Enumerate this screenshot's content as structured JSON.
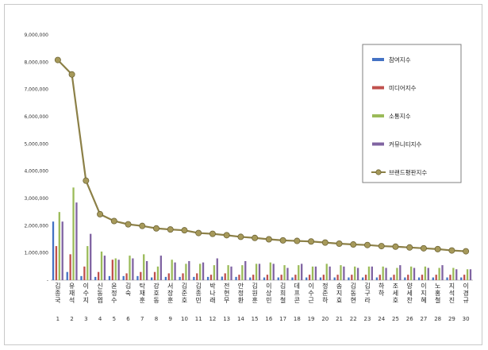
{
  "chart_data": {
    "type": "bar",
    "categories": [
      "김종국",
      "유재석",
      "이수지",
      "신동엽",
      "윤정수",
      "김숙",
      "탁재훈",
      "강호동",
      "서장훈",
      "김준호",
      "김종민",
      "박나래",
      "전현무",
      "안정환",
      "김원훈",
      "이상민",
      "김희철",
      "데프콘",
      "이수근",
      "정준하",
      "송지효",
      "김동현",
      "김구라",
      "하하",
      "조세호",
      "양세찬",
      "이지혜",
      "노홍철",
      "지석진",
      "이경규"
    ],
    "ranks": [
      "1",
      "2",
      "3",
      "4",
      "5",
      "6",
      "7",
      "8",
      "9",
      "10",
      "11",
      "12",
      "13",
      "14",
      "15",
      "16",
      "17",
      "18",
      "19",
      "20",
      "21",
      "22",
      "23",
      "24",
      "25",
      "26",
      "27",
      "28",
      "29",
      "30"
    ],
    "ylim": [
      0,
      9000000
    ],
    "yticks": [
      {
        "value": 0,
        "label": "-"
      },
      {
        "value": 1000000,
        "label": "1,000,000"
      },
      {
        "value": 2000000,
        "label": "2,000,000"
      },
      {
        "value": 3000000,
        "label": "3,000,000"
      },
      {
        "value": 4000000,
        "label": "4,000,000"
      },
      {
        "value": 5000000,
        "label": "5,000,000"
      },
      {
        "value": 6000000,
        "label": "6,000,000"
      },
      {
        "value": 7000000,
        "label": "7,000,000"
      },
      {
        "value": 8000000,
        "label": "8,000,000"
      },
      {
        "value": 9000000,
        "label": "9,000,000"
      }
    ],
    "grid": false,
    "legend_position": "right",
    "series": [
      {
        "name": "참여지수",
        "type": "bar",
        "color": "#4472c4",
        "values": [
          2150000,
          300000,
          150000,
          120000,
          150000,
          150000,
          150000,
          100000,
          120000,
          120000,
          120000,
          120000,
          130000,
          120000,
          100000,
          100000,
          100000,
          100000,
          100000,
          100000,
          100000,
          100000,
          100000,
          100000,
          100000,
          100000,
          100000,
          100000,
          100000,
          100000
        ]
      },
      {
        "name": "미디어지수",
        "type": "bar",
        "color": "#c0504d",
        "values": [
          1250000,
          950000,
          500000,
          300000,
          750000,
          250000,
          300000,
          300000,
          250000,
          250000,
          250000,
          200000,
          250000,
          200000,
          200000,
          200000,
          200000,
          200000,
          200000,
          200000,
          200000,
          200000,
          200000,
          200000,
          200000,
          200000,
          200000,
          200000,
          200000,
          200000
        ]
      },
      {
        "name": "소통지수",
        "type": "bar",
        "color": "#9bbb59",
        "values": [
          2500000,
          3400000,
          1250000,
          1050000,
          800000,
          900000,
          950000,
          500000,
          750000,
          600000,
          600000,
          550000,
          550000,
          550000,
          600000,
          650000,
          550000,
          550000,
          500000,
          600000,
          550000,
          500000,
          500000,
          500000,
          450000,
          500000,
          500000,
          450000,
          450000,
          400000
        ]
      },
      {
        "name": "커뮤니티지수",
        "type": "bar",
        "color": "#8064a2",
        "values": [
          2150000,
          2850000,
          1700000,
          900000,
          750000,
          800000,
          700000,
          900000,
          650000,
          700000,
          650000,
          800000,
          500000,
          700000,
          600000,
          600000,
          450000,
          600000,
          500000,
          500000,
          500000,
          450000,
          500000,
          450000,
          550000,
          450000,
          450000,
          550000,
          400000,
          400000
        ]
      },
      {
        "name": "브랜드평판지수",
        "type": "line",
        "color": "#8c8047",
        "values": [
          8080000,
          7550000,
          3650000,
          2420000,
          2170000,
          2050000,
          1990000,
          1900000,
          1860000,
          1830000,
          1730000,
          1700000,
          1650000,
          1590000,
          1550000,
          1500000,
          1460000,
          1440000,
          1420000,
          1380000,
          1340000,
          1310000,
          1290000,
          1250000,
          1230000,
          1200000,
          1170000,
          1140000,
          1090000,
          1060000
        ]
      }
    ]
  }
}
